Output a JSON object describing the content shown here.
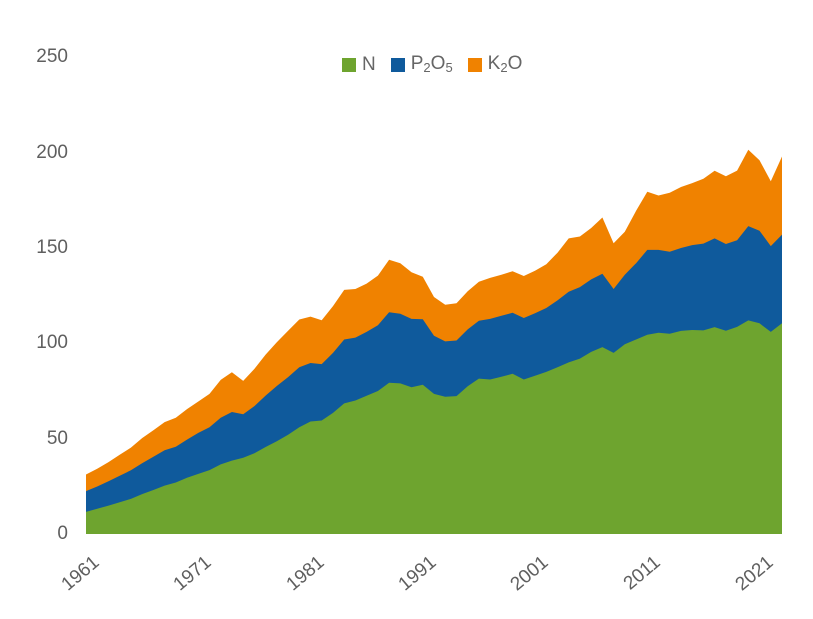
{
  "page": {
    "background_color": "#ffffff",
    "text_color": "#5f5f5f"
  },
  "legend": {
    "items": [
      {
        "name": "N",
        "color": "#6EA42F",
        "segments": [
          {
            "t": "N"
          }
        ]
      },
      {
        "name": "P2O5",
        "color": "#0F5A9C",
        "segments": [
          {
            "t": "P"
          },
          {
            "t": "2",
            "sub": true
          },
          {
            "t": "O"
          },
          {
            "t": "5",
            "sub": true
          }
        ]
      },
      {
        "name": "K2O",
        "color": "#F08200",
        "segments": [
          {
            "t": "K"
          },
          {
            "t": "2",
            "sub": true
          },
          {
            "t": "O"
          }
        ]
      }
    ]
  },
  "chart_data": {
    "type": "area",
    "stacked": true,
    "title": "",
    "xlabel": "",
    "ylabel": "",
    "grid": false,
    "legend_position": "top-center",
    "ylim": [
      0,
      250
    ],
    "y_ticks": [
      0,
      50,
      100,
      150,
      200,
      250
    ],
    "x_tick_labels": [
      1961,
      1971,
      1981,
      1991,
      2001,
      2011,
      2021
    ],
    "x": [
      1961,
      1962,
      1963,
      1964,
      1965,
      1966,
      1967,
      1968,
      1969,
      1970,
      1971,
      1972,
      1973,
      1974,
      1975,
      1976,
      1977,
      1978,
      1979,
      1980,
      1981,
      1982,
      1983,
      1984,
      1985,
      1986,
      1987,
      1988,
      1989,
      1990,
      1991,
      1992,
      1993,
      1994,
      1995,
      1996,
      1997,
      1998,
      1999,
      2000,
      2001,
      2002,
      2003,
      2004,
      2005,
      2006,
      2007,
      2008,
      2009,
      2010,
      2011,
      2012,
      2013,
      2014,
      2015,
      2016,
      2017,
      2018,
      2019,
      2020,
      2021,
      2022,
      2023
    ],
    "series": [
      {
        "name": "N",
        "color": "#6EA42F",
        "values": [
          11.6,
          13.2,
          14.9,
          16.7,
          18.4,
          20.9,
          23.1,
          25.4,
          27.0,
          29.5,
          31.5,
          33.5,
          36.5,
          38.5,
          40.0,
          42.3,
          45.6,
          48.6,
          52.0,
          56.0,
          59.0,
          59.5,
          63.5,
          68.5,
          70.0,
          72.5,
          75.0,
          79.3,
          79.0,
          77.0,
          78.3,
          73.5,
          72.0,
          72.3,
          77.5,
          81.5,
          81.0,
          82.5,
          84.0,
          81.0,
          83.0,
          85.0,
          87.5,
          90.0,
          92.0,
          95.5,
          98.0,
          95.0,
          99.5,
          102.0,
          104.5,
          105.5,
          105.0,
          106.5,
          107.0,
          106.8,
          108.5,
          106.6,
          108.6,
          112.0,
          110.5,
          106.0,
          110.5
        ]
      },
      {
        "name": "P2O5",
        "color": "#0F5A9C",
        "values": [
          10.9,
          11.7,
          12.8,
          13.9,
          15.0,
          16.2,
          17.4,
          18.5,
          18.8,
          20.0,
          21.5,
          22.5,
          24.5,
          25.5,
          22.8,
          24.8,
          27.0,
          29.0,
          30.3,
          31.5,
          30.7,
          29.6,
          31.5,
          33.5,
          33.0,
          33.5,
          34.5,
          37.0,
          36.5,
          35.8,
          34.3,
          30.5,
          29.0,
          29.2,
          29.8,
          30.3,
          31.8,
          32.0,
          32.0,
          32.3,
          32.8,
          33.5,
          35.0,
          37.0,
          37.5,
          38.0,
          38.5,
          33.5,
          36.5,
          40.0,
          44.5,
          43.5,
          43.0,
          43.5,
          44.5,
          45.5,
          46.5,
          45.5,
          45.5,
          49.5,
          48.5,
          45.0,
          46.5
        ]
      },
      {
        "name": "K2O",
        "color": "#F08200",
        "values": [
          8.7,
          9.3,
          10.0,
          11.0,
          11.9,
          13.2,
          13.9,
          14.8,
          15.2,
          16.0,
          16.5,
          17.5,
          19.8,
          20.8,
          17.5,
          19.5,
          21.5,
          23.0,
          24.3,
          25.0,
          24.3,
          23.0,
          24.5,
          26.0,
          25.5,
          25.3,
          26.0,
          27.5,
          26.5,
          24.5,
          22.3,
          20.3,
          19.2,
          19.5,
          20.0,
          20.5,
          21.5,
          21.5,
          21.8,
          22.0,
          22.3,
          23.0,
          25.0,
          28.0,
          26.5,
          27.0,
          29.5,
          24.0,
          22.5,
          27.5,
          30.5,
          28.5,
          31.0,
          32.0,
          32.5,
          34.0,
          35.5,
          35.5,
          36.5,
          40.0,
          37.0,
          34.0,
          41.0
        ]
      }
    ]
  }
}
